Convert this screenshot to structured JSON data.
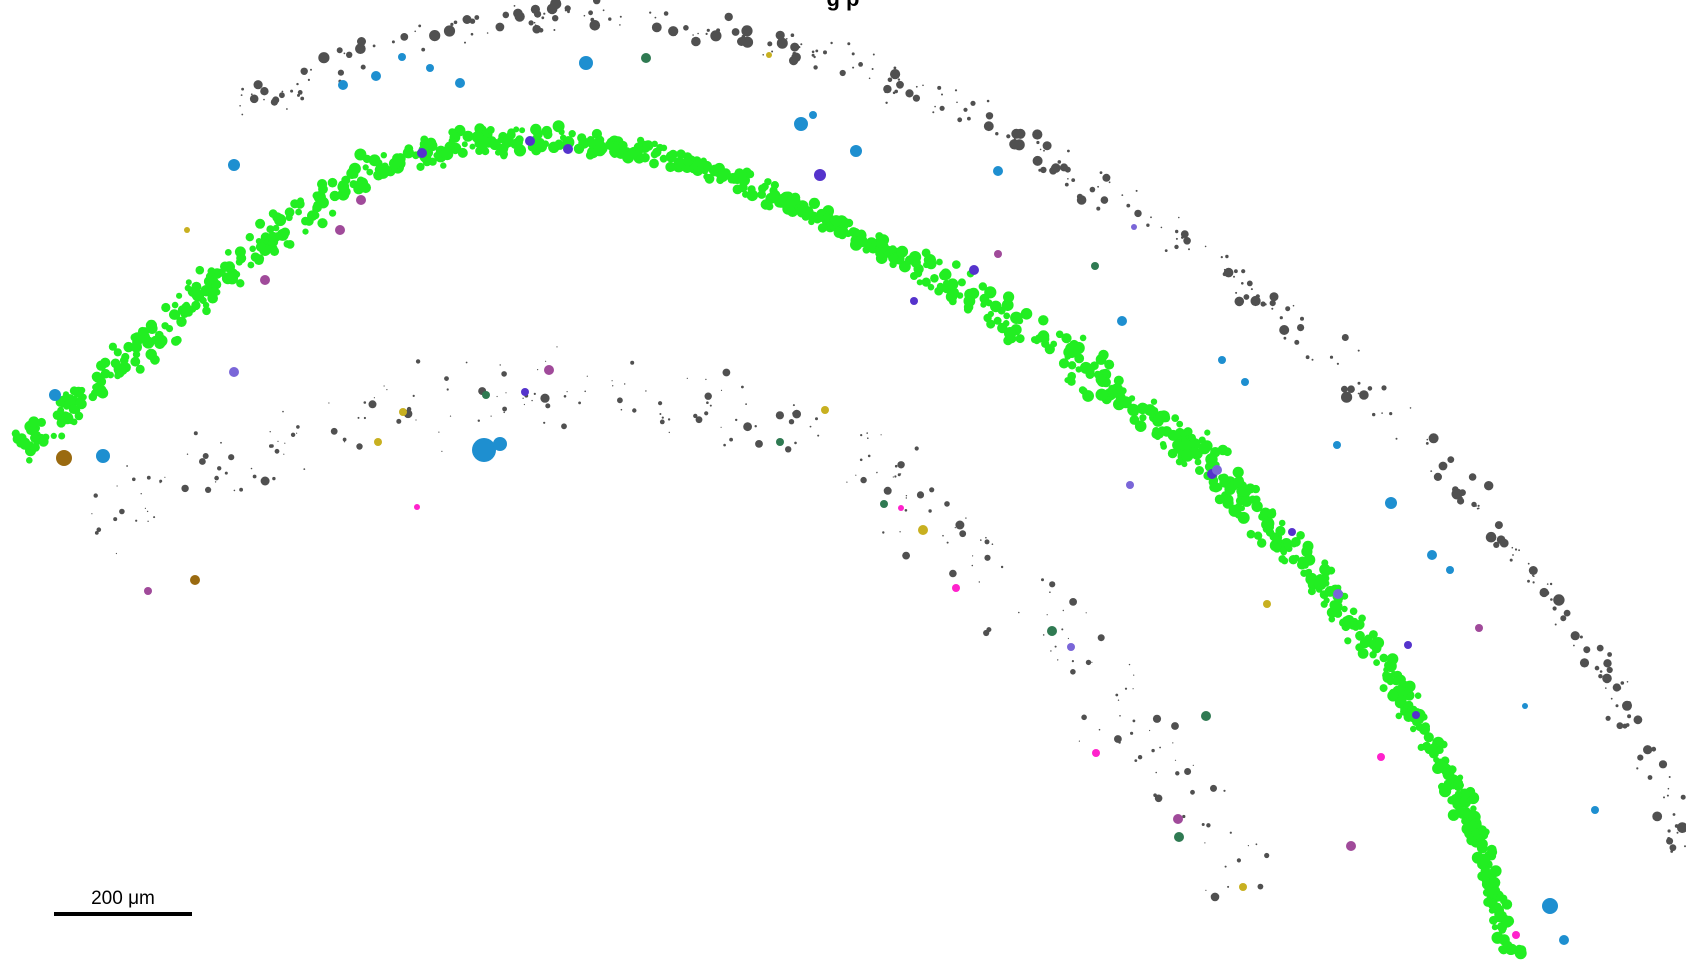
{
  "title_fragment": "g    p",
  "scale_bar": {
    "label": "200 μm"
  },
  "colors": {
    "band": "#22ee22",
    "gray": "#505050",
    "blue": "#1e8fd0",
    "purple": "#5533cc",
    "magenta": "#a04a9a",
    "pink": "#ff22cc",
    "yellow": "#c8b020",
    "brown": "#9a6a10",
    "darkgreen": "#2f7a52",
    "lavender": "#7a66d8"
  },
  "cell_types": [
    "band",
    "gray",
    "blue",
    "purple",
    "magenta",
    "pink",
    "yellow",
    "brown",
    "darkgreen",
    "lavender"
  ]
}
